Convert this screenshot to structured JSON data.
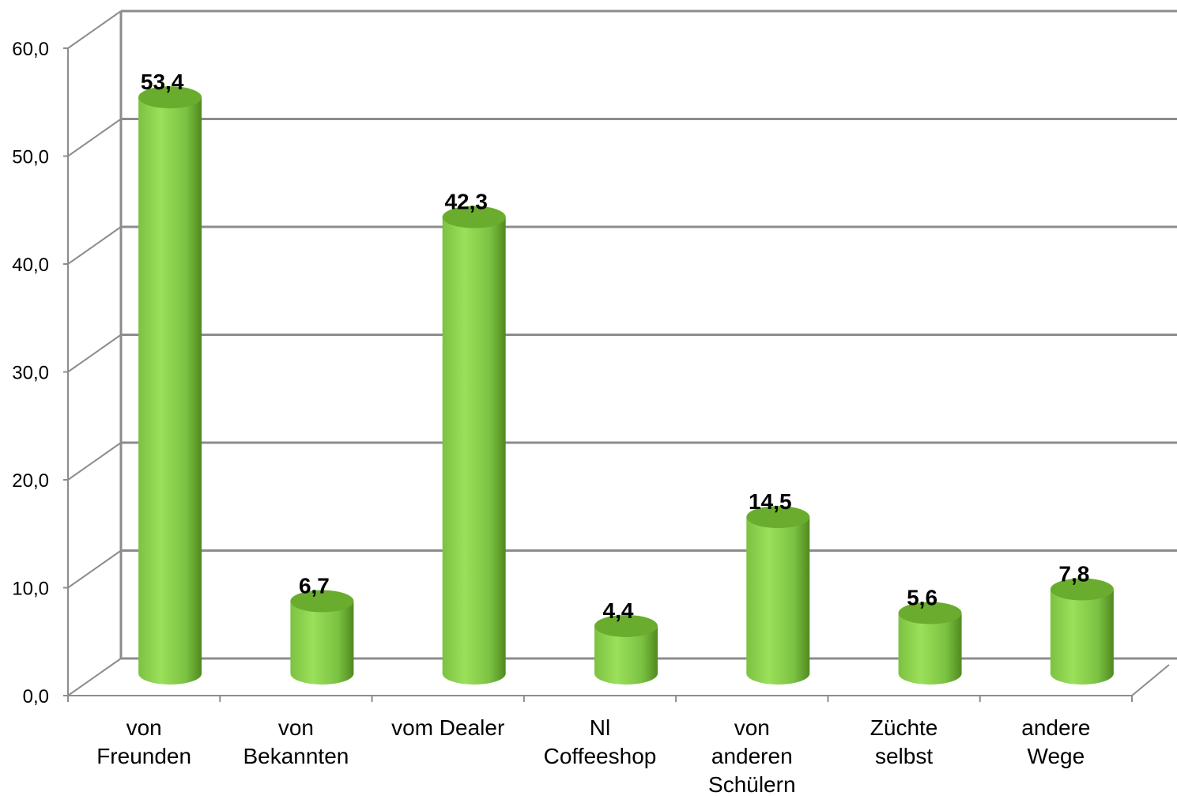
{
  "chart_data": {
    "type": "bar",
    "style": "3d-cylinder",
    "categories": [
      [
        "von",
        "Freunden"
      ],
      [
        "von",
        "Bekannten"
      ],
      [
        "vom Dealer"
      ],
      [
        "Nl",
        "Coffeeshop"
      ],
      [
        "von",
        "anderen",
        "Schülern"
      ],
      [
        "Züchte",
        "selbst"
      ],
      [
        "andere",
        "Wege"
      ]
    ],
    "values": [
      53.4,
      6.7,
      42.3,
      4.4,
      14.5,
      5.6,
      7.8
    ],
    "data_labels": [
      "53,4",
      "6,7",
      "42,3",
      "4,4",
      "14,5",
      "5,6",
      "7,8"
    ],
    "ylim": [
      0,
      60
    ],
    "yticks": [
      0,
      10,
      20,
      30,
      40,
      50,
      60
    ],
    "ytick_labels": [
      "0,0",
      "10,0",
      "20,0",
      "30,0",
      "40,0",
      "50,0",
      "60,0"
    ],
    "grid": true,
    "legend": "none",
    "title": "",
    "xlabel": "",
    "ylabel": "",
    "colors": {
      "bar_light": "#9be05a",
      "bar_mid": "#7cc242",
      "bar_dark": "#4f8a1f",
      "bar_top": "#6aac2e",
      "grid": "#8c8c8c"
    }
  }
}
